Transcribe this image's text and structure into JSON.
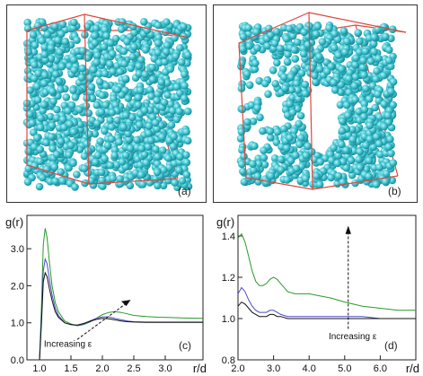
{
  "panels": {
    "a": {
      "label": "(a)"
    },
    "b": {
      "label": "(b)"
    },
    "c": {
      "label": "(c)"
    },
    "d": {
      "label": "(d)"
    }
  },
  "colors": {
    "particle": "#3cc4d0",
    "particle_dark": "#1e8c99",
    "box": "#e0473f",
    "green": "#2a9a2a",
    "blue": "#4a4ad0",
    "black": "#111111"
  },
  "chart_data": [
    {
      "type": "line",
      "panel": "c",
      "ylabel": "g(r)",
      "xlabel": "r/d",
      "xlim": [
        0.8,
        3.6
      ],
      "ylim": [
        0.0,
        3.9
      ],
      "xticks": [
        1.0,
        1.5,
        2.0,
        2.5,
        3.0
      ],
      "xticklabels": [
        "1.0",
        "1.5",
        "2.0",
        "2.5",
        "3.0"
      ],
      "yticks": [
        0.0,
        1.0,
        2.0,
        3.0
      ],
      "yticklabels": [
        "0.0",
        "1.0",
        "2.0",
        "3.0"
      ],
      "annotation": "Increasing ε",
      "grid": false,
      "series": [
        {
          "color": "green",
          "x": [
            1.0,
            1.03,
            1.06,
            1.09,
            1.12,
            1.16,
            1.2,
            1.25,
            1.3,
            1.4,
            1.5,
            1.6,
            1.7,
            1.8,
            1.9,
            2.0,
            2.1,
            2.2,
            2.3,
            2.4,
            2.5,
            2.7,
            2.9,
            3.1,
            3.3,
            3.6
          ],
          "y": [
            0.0,
            1.4,
            3.1,
            3.55,
            3.3,
            2.6,
            2.0,
            1.55,
            1.3,
            1.05,
            0.97,
            0.92,
            0.95,
            1.02,
            1.12,
            1.22,
            1.28,
            1.3,
            1.28,
            1.24,
            1.2,
            1.17,
            1.15,
            1.14,
            1.13,
            1.12
          ]
        },
        {
          "color": "blue",
          "x": [
            1.0,
            1.03,
            1.06,
            1.09,
            1.12,
            1.16,
            1.2,
            1.25,
            1.3,
            1.4,
            1.5,
            1.6,
            1.7,
            1.8,
            1.9,
            2.0,
            2.1,
            2.2,
            2.3,
            2.4,
            2.5,
            2.7,
            2.9,
            3.1,
            3.3,
            3.6
          ],
          "y": [
            0.0,
            1.1,
            2.4,
            2.72,
            2.6,
            2.15,
            1.75,
            1.4,
            1.2,
            1.0,
            0.95,
            0.93,
            0.97,
            1.05,
            1.12,
            1.16,
            1.16,
            1.12,
            1.08,
            1.05,
            1.03,
            1.02,
            1.02,
            1.02,
            1.02,
            1.02
          ]
        },
        {
          "color": "black",
          "x": [
            1.0,
            1.03,
            1.06,
            1.09,
            1.12,
            1.16,
            1.2,
            1.25,
            1.3,
            1.4,
            1.5,
            1.6,
            1.7,
            1.8,
            1.9,
            2.0,
            2.1,
            2.2,
            2.3,
            2.4,
            2.5,
            2.7,
            2.9,
            3.1,
            3.3,
            3.6
          ],
          "y": [
            0.0,
            0.95,
            2.1,
            2.35,
            2.25,
            1.9,
            1.6,
            1.3,
            1.15,
            1.0,
            0.95,
            0.94,
            0.98,
            1.04,
            1.09,
            1.12,
            1.11,
            1.08,
            1.05,
            1.03,
            1.02,
            1.01,
            1.01,
            1.01,
            1.01,
            1.01
          ]
        }
      ]
    },
    {
      "type": "line",
      "panel": "d",
      "ylabel": "g(r)",
      "xlabel": "r/d",
      "xlim": [
        2.0,
        7.0
      ],
      "ylim": [
        0.8,
        1.5
      ],
      "xticks": [
        2.0,
        3.0,
        4.0,
        5.0,
        6.0
      ],
      "xticklabels": [
        "2.0",
        "3.0",
        "4.0",
        "5.0",
        "6.0"
      ],
      "yticks": [
        0.8,
        1.0,
        1.2,
        1.4
      ],
      "yticklabels": [
        "0.8",
        "1.0",
        "1.2",
        "1.4"
      ],
      "annotation": "Increasing ε",
      "grid": false,
      "series": [
        {
          "color": "green",
          "x": [
            2.0,
            2.1,
            2.2,
            2.3,
            2.4,
            2.5,
            2.6,
            2.7,
            2.8,
            2.9,
            3.0,
            3.1,
            3.2,
            3.4,
            3.6,
            3.8,
            4.0,
            4.3,
            4.6,
            5.0,
            5.5,
            6.0,
            6.5,
            7.0
          ],
          "y": [
            1.39,
            1.41,
            1.37,
            1.3,
            1.23,
            1.18,
            1.16,
            1.16,
            1.17,
            1.19,
            1.2,
            1.19,
            1.17,
            1.13,
            1.12,
            1.12,
            1.12,
            1.11,
            1.1,
            1.08,
            1.06,
            1.05,
            1.04,
            1.04
          ]
        },
        {
          "color": "blue",
          "x": [
            2.0,
            2.1,
            2.2,
            2.3,
            2.4,
            2.5,
            2.6,
            2.7,
            2.8,
            2.9,
            3.0,
            3.1,
            3.2,
            3.4,
            3.6,
            3.8,
            4.0,
            4.3,
            4.6,
            5.0,
            5.5,
            6.0,
            6.5,
            7.0
          ],
          "y": [
            1.12,
            1.15,
            1.13,
            1.09,
            1.06,
            1.04,
            1.03,
            1.03,
            1.03,
            1.04,
            1.04,
            1.03,
            1.02,
            1.01,
            1.01,
            1.01,
            1.01,
            1.01,
            1.01,
            1.01,
            1.01,
            1.0,
            1.0,
            1.0
          ]
        },
        {
          "color": "black",
          "x": [
            2.0,
            2.1,
            2.2,
            2.3,
            2.4,
            2.5,
            2.6,
            2.7,
            2.8,
            2.9,
            3.0,
            3.1,
            3.2,
            3.4,
            3.6,
            3.8,
            4.0,
            4.3,
            4.6,
            5.0,
            5.5,
            6.0,
            6.5,
            7.0
          ],
          "y": [
            1.06,
            1.08,
            1.07,
            1.05,
            1.03,
            1.02,
            1.01,
            1.01,
            1.01,
            1.02,
            1.02,
            1.01,
            1.01,
            1.0,
            1.0,
            1.0,
            1.0,
            1.0,
            1.0,
            1.0,
            1.0,
            1.0,
            1.0,
            1.0
          ]
        }
      ]
    }
  ]
}
